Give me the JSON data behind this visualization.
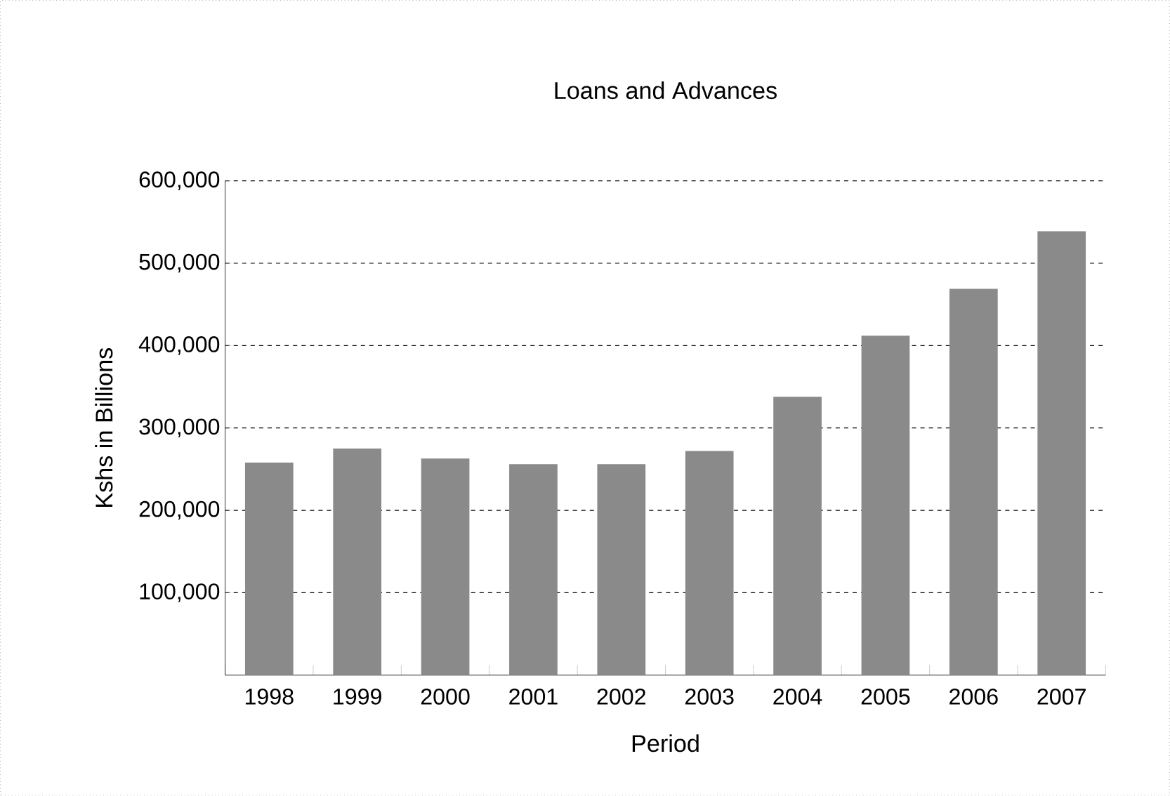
{
  "chart_data": {
    "type": "bar",
    "title": "Loans and Advances",
    "xlabel": "Period",
    "ylabel": "Kshs in Billions",
    "categories": [
      "1998",
      "1999",
      "2000",
      "2001",
      "2002",
      "2003",
      "2004",
      "2005",
      "2006",
      "2007"
    ],
    "values": [
      258000,
      275000,
      263000,
      256000,
      256000,
      272000,
      338000,
      412000,
      469000,
      539000
    ],
    "color": "#8a8a8a",
    "ylim": [
      0,
      600000
    ],
    "yticks": [
      {
        "value": 100000,
        "label": "100,000"
      },
      {
        "value": 200000,
        "label": "200,000"
      },
      {
        "value": 300000,
        "label": "300,000"
      },
      {
        "value": 400000,
        "label": "400,000"
      },
      {
        "value": 500000,
        "label": "500,000"
      },
      {
        "value": 600000,
        "label": "600,000"
      }
    ],
    "grid": "y"
  }
}
